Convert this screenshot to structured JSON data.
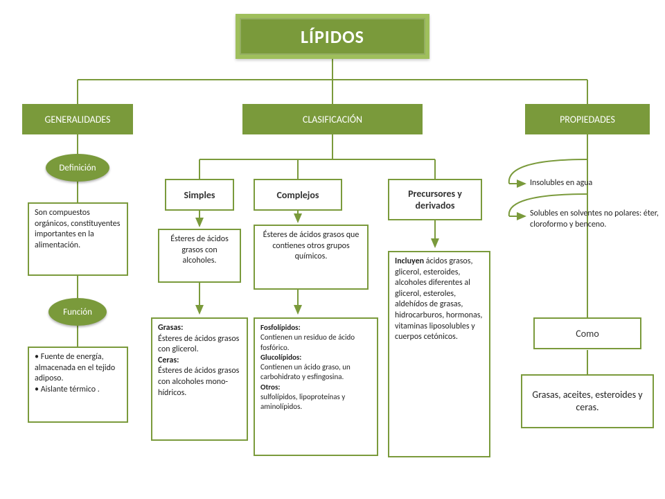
{
  "colors": {
    "primary": "#7a9a3b",
    "primary_light": "#9fbf5c",
    "background": "#ffffff",
    "text": "#222222"
  },
  "title": "LÍPIDOS",
  "branches": {
    "generalidades": {
      "header": "GENERALIDADES",
      "definicion_label": "Definición",
      "definicion_text": "Son compuestos orgánicos, constituyentes importantes en la alimentación.",
      "funcion_label": "Función",
      "funcion_text": "• Fuente de energía, almacenada en el tejido adiposo.\n• Aislante térmico ."
    },
    "clasificacion": {
      "header": "CLASIFICACIÓN",
      "simples": {
        "label": "Simples",
        "desc": "Ésteres de ácidos grasos con alcoholes.",
        "detail_html": "<b>Grasas:</b><br> Ésteres de ácidos grasos con glicerol.<br><b>Ceras:</b><br>Ésteres de ácidos grasos con alcoholes mono-hídricos."
      },
      "complejos": {
        "label": "Complejos",
        "desc": "Ésteres de ácidos grasos que contienes otros grupos químicos.",
        "detail_html": "<b>Fosfolípidos:</b><br> Contienen un residuo de ácido fosfórico.<br><b>Glucolípidos:</b><br> Contienen un ácido graso, un carbohidrato y esfingosina.<br><b>Otros:</b><br> sulfolípidos, lipoproteínas y aminolípidos."
      },
      "precursores": {
        "label": "Precursores y derivados",
        "detail_html": "<b>Incluyen</b> ácidos grasos, glicerol, esteroides, alcoholes diferentes al glicerol, esteroles, aldehídos de grasas, hidrocarburos, hormonas, vitaminas liposolubles y cuerpos cetónicos."
      }
    },
    "propiedades": {
      "header": "PROPIEDADES",
      "item1": "Insolubles en agua",
      "item2": "Solubles en solventes no polares: éter, cloroformo y benceno.",
      "como_label": "Como",
      "como_text": "Grasas, aceites, esteroides y ceras."
    }
  }
}
